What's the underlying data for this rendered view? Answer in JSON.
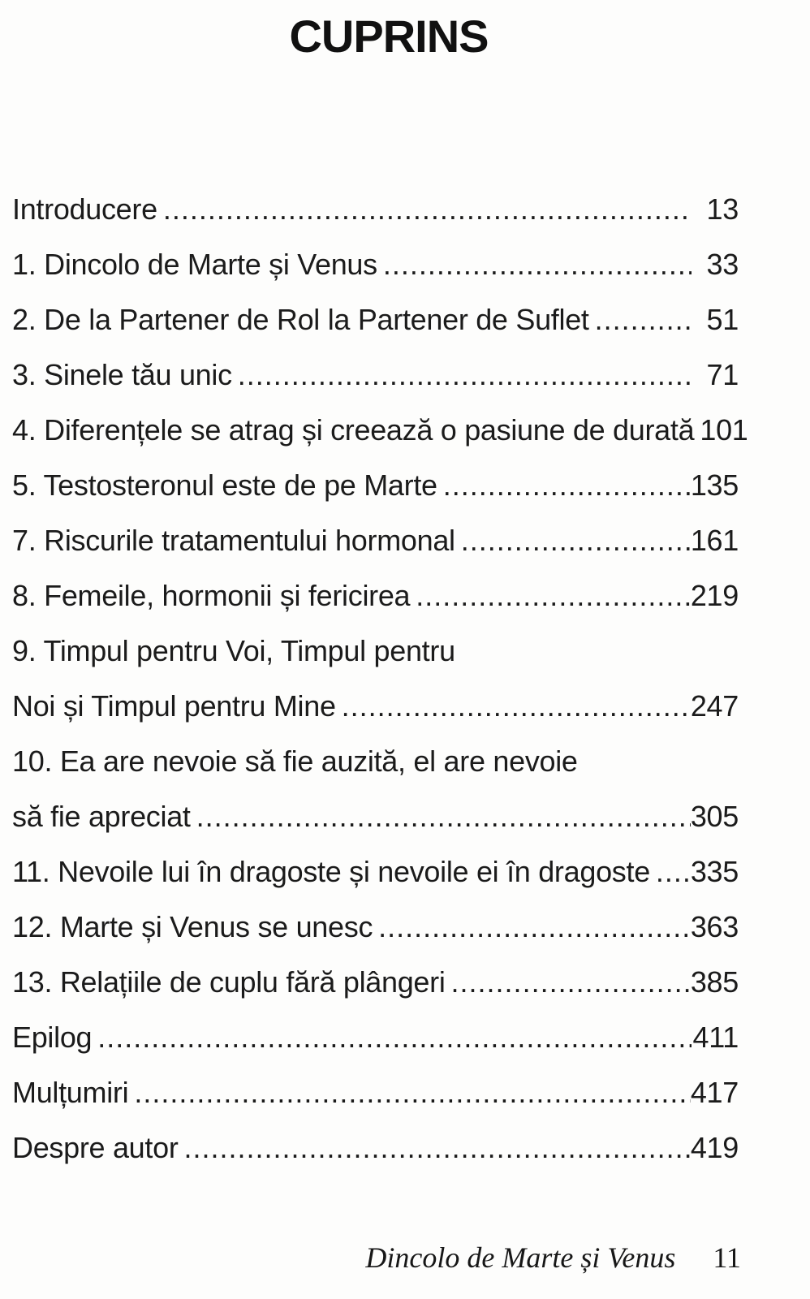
{
  "page": {
    "title": "CUPRINS",
    "footer": {
      "book_title": "Dincolo de Marte și Venus",
      "page_number": "11"
    }
  },
  "toc": {
    "entries": [
      {
        "label": "Introducere",
        "page": "13"
      },
      {
        "label": "1. Dincolo de Marte și Venus",
        "page": "33"
      },
      {
        "label": "2. De la Partener de Rol la Partener de Suflet",
        "page": "51"
      },
      {
        "label": "3. Sinele tău unic",
        "page": "71"
      },
      {
        "label": "4. Diferențele se atrag și creează o pasiune de durată",
        "page": "101"
      },
      {
        "label": "5. Testosteronul este de pe Marte",
        "page": "135"
      },
      {
        "label": "7. Riscurile tratamentului hormonal",
        "page": "161"
      },
      {
        "label": "8. Femeile, hormonii și fericirea",
        "page": "219"
      },
      {
        "label": "9. Timpul pentru Voi, Timpul pentru",
        "page": ""
      },
      {
        "label": "Noi și Timpul pentru Mine",
        "page": "247"
      },
      {
        "label": "10. Ea are nevoie să fie auzită, el are nevoie",
        "page": ""
      },
      {
        "label": "să fie apreciat",
        "page": "305"
      },
      {
        "label": "11. Nevoile lui în dragoste și nevoile ei în dragoste",
        "page": "335"
      },
      {
        "label": "12. Marte și Venus se unesc",
        "page": "363"
      },
      {
        "label": "13. Relațiile de cuplu fără plângeri",
        "page": "385"
      },
      {
        "label": "Epilog",
        "page": "411"
      },
      {
        "label": "Mulțumiri",
        "page": "417"
      },
      {
        "label": "Despre autor",
        "page": "419"
      }
    ]
  },
  "colors": {
    "text": "#1b1b1b",
    "background": "#fdfdfc"
  }
}
